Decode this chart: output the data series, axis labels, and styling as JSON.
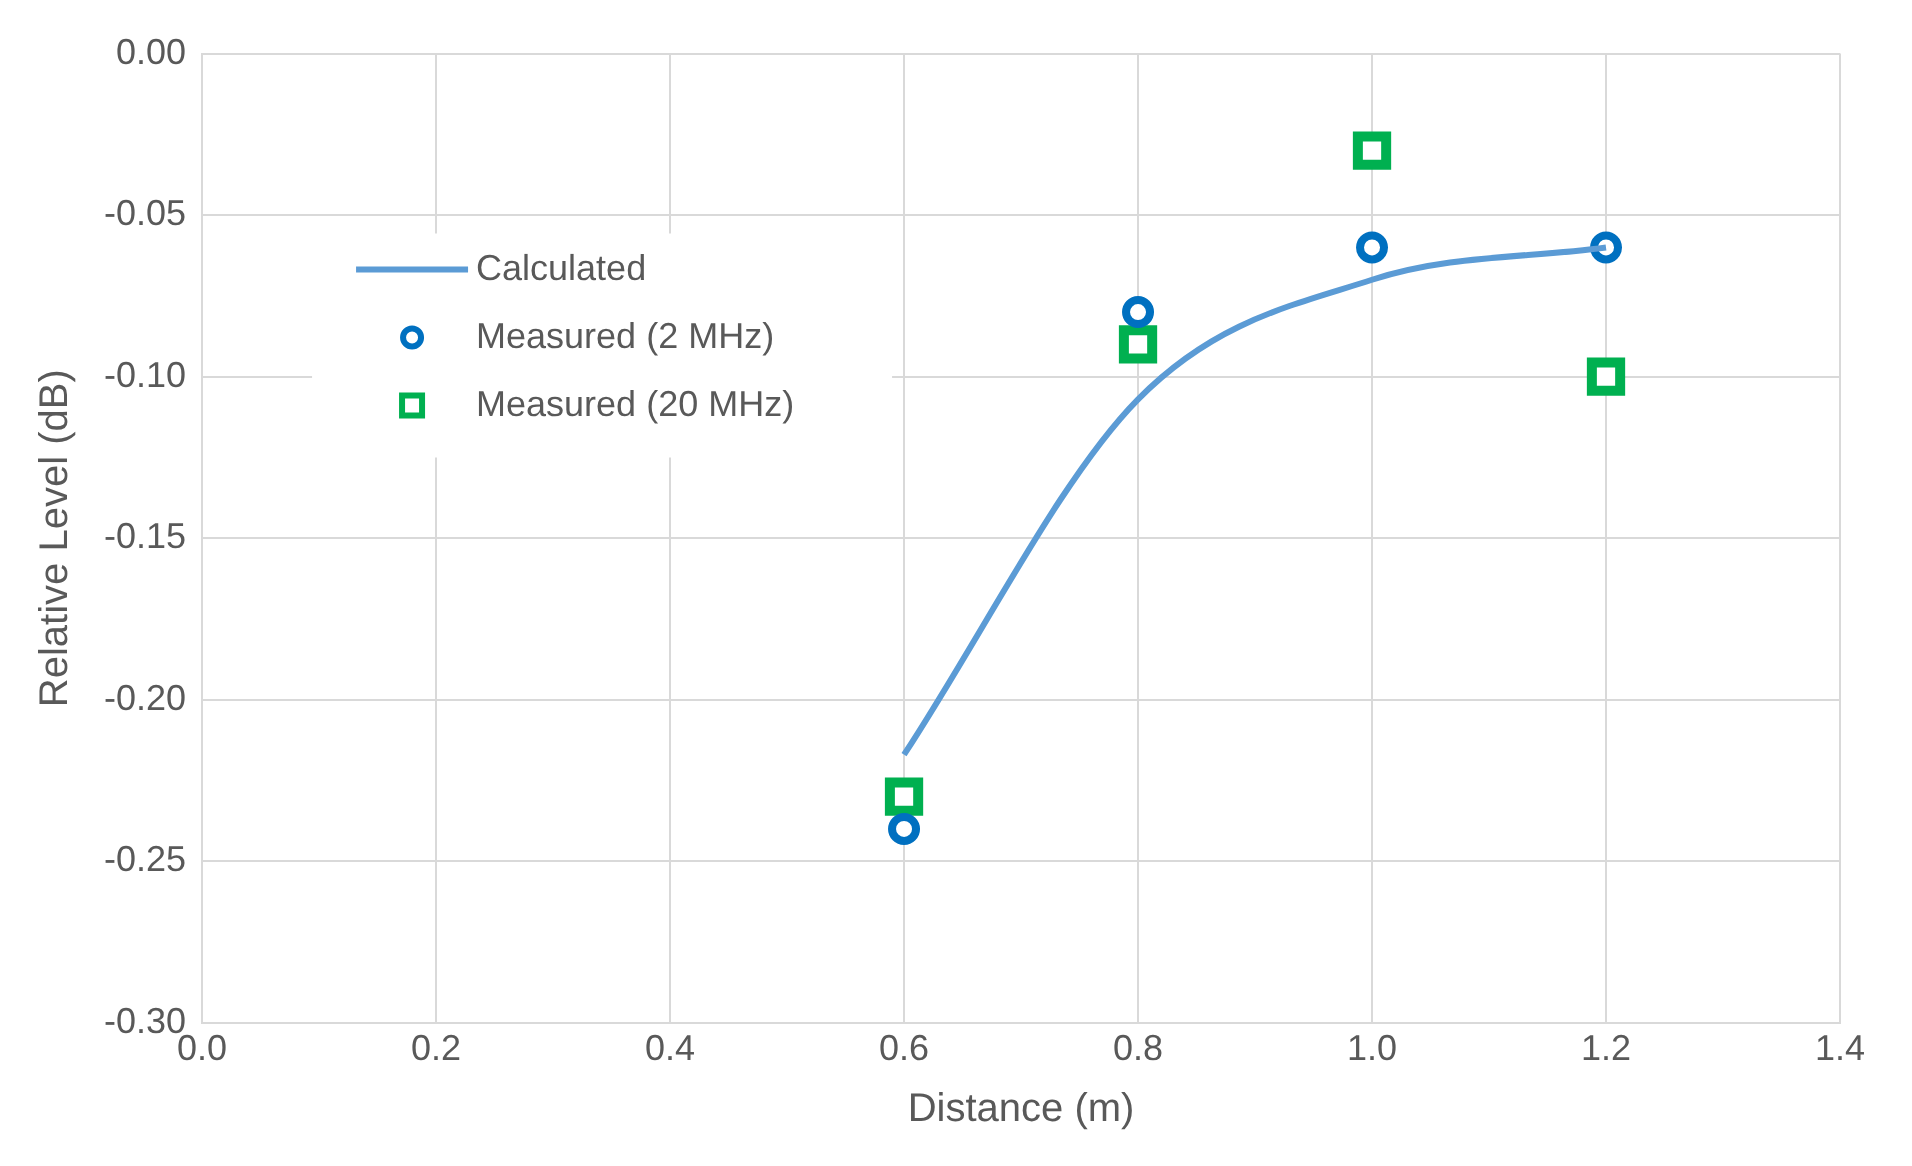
{
  "chart_data": {
    "type": "scatter",
    "xlabel": "Distance (m)",
    "ylabel": "Relative Level (dB)",
    "xlim": [
      0,
      1.4
    ],
    "xticks": [
      {
        "value": 0,
        "label": "0.0"
      },
      {
        "value": 0.2,
        "label": "0.2"
      },
      {
        "value": 0.4,
        "label": "0.4"
      },
      {
        "value": 0.6,
        "label": "0.6"
      },
      {
        "value": 0.8,
        "label": "0.8"
      },
      {
        "value": 1,
        "label": "1.0"
      },
      {
        "value": 1.2,
        "label": "1.2"
      },
      {
        "value": 1.4,
        "label": "1.4"
      }
    ],
    "ylim": [
      -0.3,
      0
    ],
    "yticks": [
      {
        "value": -0.3,
        "label": "-0.30"
      },
      {
        "value": -0.25,
        "label": "-0.25"
      },
      {
        "value": -0.2,
        "label": "-0.20"
      },
      {
        "value": -0.15,
        "label": "-0.15"
      },
      {
        "value": -0.1,
        "label": "-0.10"
      },
      {
        "value": -0.05,
        "label": "-0.05"
      },
      {
        "value": 0,
        "label": "0.00"
      }
    ],
    "grid": true,
    "legend": "top left",
    "series": [
      {
        "name": "Calculated",
        "type": "line",
        "color": "#5b9bd5",
        "marker": "none",
        "x": [
          0.6,
          0.8,
          1.0,
          1.2
        ],
        "values": [
          -0.217,
          -0.107,
          -0.07,
          -0.06
        ]
      },
      {
        "name": "Measured (2 MHz)",
        "color": "#0070c0",
        "marker": "circle",
        "x": [
          0.6,
          0.8,
          1.0,
          1.2
        ],
        "values": [
          -0.24,
          -0.08,
          -0.06,
          -0.06
        ]
      },
      {
        "name": "Measured (20 MHz)",
        "color": "#00b050",
        "marker": "square",
        "x": [
          0.6,
          0.8,
          1.0,
          1.2
        ],
        "values": [
          -0.23,
          -0.09,
          -0.03,
          -0.1
        ]
      }
    ]
  }
}
